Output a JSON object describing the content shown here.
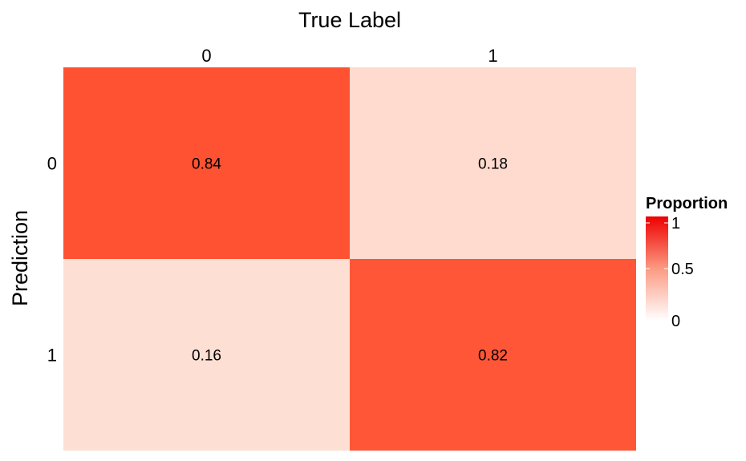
{
  "chart_data": {
    "type": "heatmap",
    "x_title": "True Label",
    "y_title": "Prediction",
    "x_categories": [
      "0",
      "1"
    ],
    "y_categories": [
      "0",
      "1"
    ],
    "cells": [
      {
        "prediction": "0",
        "true_label": "0",
        "value": 0.84,
        "label": "0.84"
      },
      {
        "prediction": "0",
        "true_label": "1",
        "value": 0.18,
        "label": "0.18"
      },
      {
        "prediction": "1",
        "true_label": "0",
        "value": 0.16,
        "label": "0.16"
      },
      {
        "prediction": "1",
        "true_label": "1",
        "value": 0.82,
        "label": "0.82"
      }
    ],
    "legend": {
      "title": "Proportion",
      "ticks": [
        "1",
        "0.5",
        "0"
      ],
      "tick_values": [
        1,
        0.5,
        0
      ],
      "range": [
        0,
        1
      ],
      "low_color": "#ffffff",
      "high_color": "#ee0000",
      "placement": "right"
    },
    "high_cell_color": "#ff5233",
    "low_cell_color": "#fedfd3"
  }
}
